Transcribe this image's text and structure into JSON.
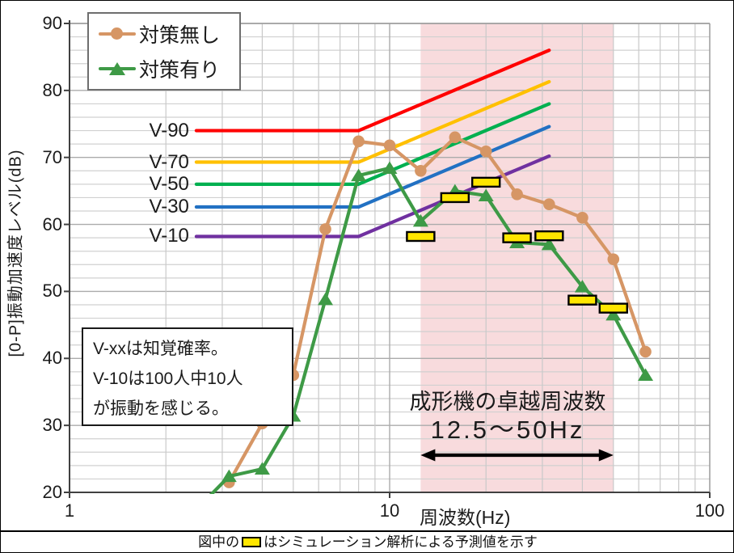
{
  "y_axis": {
    "label": "[0-P]振動加速度レベル(dB)",
    "min": 20,
    "max": 90,
    "ticks": [
      20,
      30,
      40,
      50,
      60,
      70,
      80,
      90
    ]
  },
  "x_axis": {
    "label": "周波数(Hz)",
    "min": 1,
    "max": 100,
    "scale": "log",
    "ticks": [
      1,
      10,
      100
    ]
  },
  "legend": {
    "position": "top-left",
    "items": [
      {
        "label": "対策無し",
        "marker": "circle",
        "color": "#D69665"
      },
      {
        "label": "対策有り",
        "marker": "triangle",
        "color": "#3E9A46"
      }
    ]
  },
  "v_curves": {
    "flat_start_hz": 2.49,
    "bend_hz": 8,
    "end_hz": 31.5,
    "curves": [
      {
        "label": "V-90",
        "color": "#FF0000",
        "flat_db": 74.0,
        "end_db": 86.0
      },
      {
        "label": "V-70",
        "color": "#FFC000",
        "flat_db": 69.3,
        "end_db": 81.3
      },
      {
        "label": "V-50",
        "color": "#00B050",
        "flat_db": 66.0,
        "end_db": 78.0
      },
      {
        "label": "V-30",
        "color": "#2271C3",
        "flat_db": 62.6,
        "end_db": 74.6
      },
      {
        "label": "V-10",
        "color": "#7030A0",
        "flat_db": 58.2,
        "end_db": 70.2
      }
    ]
  },
  "chart_data": {
    "type": "line",
    "title": "",
    "xlabel": "周波数(Hz)",
    "ylabel": "[0-P]振動加速度レベル(dB)",
    "xlim": [
      1,
      100
    ],
    "xscale": "log",
    "ylim": [
      20,
      90
    ],
    "grid": "on",
    "series": [
      {
        "name": "対策無し",
        "marker": "circle",
        "color": "#D69665",
        "points": [
          [
            3.15,
            21.5
          ],
          [
            4,
            30.3
          ],
          [
            5,
            37.5
          ],
          [
            6.3,
            59.3
          ],
          [
            8,
            72.4
          ],
          [
            10,
            71.8
          ],
          [
            12.5,
            68.0
          ],
          [
            16,
            73.0
          ],
          [
            20,
            70.9
          ],
          [
            25,
            64.5
          ],
          [
            31.5,
            63.0
          ],
          [
            40,
            61.0
          ],
          [
            50,
            54.8
          ],
          [
            63,
            41.0
          ]
        ]
      },
      {
        "name": "対策有り",
        "marker": "triangle",
        "color": "#3E9A46",
        "points": [
          [
            2.5,
            17.5
          ],
          [
            3.15,
            22.4
          ],
          [
            4,
            23.5
          ],
          [
            5,
            31.4
          ],
          [
            6.3,
            48.8
          ],
          [
            8,
            67.3
          ],
          [
            10,
            68.4
          ],
          [
            12.5,
            60.5
          ],
          [
            16,
            65.0
          ],
          [
            20,
            64.3
          ],
          [
            25,
            57.3
          ],
          [
            31.5,
            57.0
          ],
          [
            40,
            50.7
          ],
          [
            50,
            46.5
          ],
          [
            63,
            37.5
          ]
        ]
      },
      {
        "name": "シミュレーション予測値",
        "marker": "rect",
        "color": "#FFE600",
        "line": "none",
        "points": [
          [
            12.5,
            58.2
          ],
          [
            16,
            64.0
          ],
          [
            20,
            66.3
          ],
          [
            25,
            58.0
          ],
          [
            31.5,
            58.3
          ],
          [
            40,
            48.7
          ],
          [
            50,
            47.5
          ]
        ]
      }
    ],
    "highlight_band": {
      "from_hz": 12.5,
      "to_hz": 50,
      "color": "#F8DBDD",
      "label_line1": "成形機の卓越周波数",
      "label_line2": "12.5～50Hz",
      "arrow": "double-headed"
    }
  },
  "note_box": {
    "lines": [
      "V-xxは知覚確率。",
      "V-10は100人中10人",
      "が振動を感じる。"
    ]
  },
  "caption": {
    "prefix": "図中の",
    "symbol": "simulation-rect",
    "suffix": "はシミュレーション解析による予測値を示す"
  }
}
